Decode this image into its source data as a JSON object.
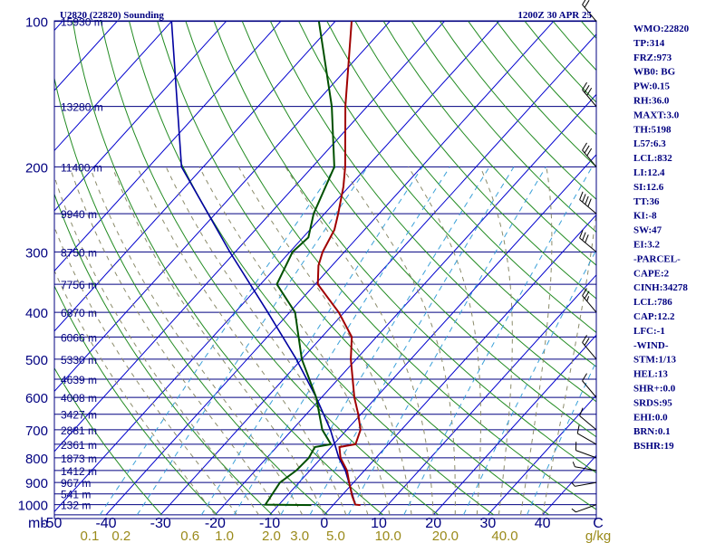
{
  "title_left": "U2820 (22820) Sounding",
  "title_right": "1200Z 30 APR 25",
  "chart_data": {
    "type": "line",
    "pressure_ticks": [
      {
        "p": 100,
        "label": "100"
      },
      {
        "p": 200,
        "label": "200"
      },
      {
        "p": 300,
        "label": "300"
      },
      {
        "p": 400,
        "label": "400"
      },
      {
        "p": 500,
        "label": "500"
      },
      {
        "p": 600,
        "label": "600"
      },
      {
        "p": 700,
        "label": "700"
      },
      {
        "p": 800,
        "label": "800"
      },
      {
        "p": 900,
        "label": "900"
      },
      {
        "p": 1000,
        "label": "1000"
      }
    ],
    "height_labels": [
      {
        "p": 100,
        "label": "15930 m"
      },
      {
        "p": 150,
        "label": "13280 m"
      },
      {
        "p": 200,
        "label": "11400 m"
      },
      {
        "p": 250,
        "label": "9940 m"
      },
      {
        "p": 300,
        "label": "8750 m"
      },
      {
        "p": 350,
        "label": "7756 m"
      },
      {
        "p": 400,
        "label": "6870 m"
      },
      {
        "p": 450,
        "label": "6066 m"
      },
      {
        "p": 500,
        "label": "5330 m"
      },
      {
        "p": 550,
        "label": "4639 m"
      },
      {
        "p": 600,
        "label": "4008 m"
      },
      {
        "p": 650,
        "label": "3427 m"
      },
      {
        "p": 700,
        "label": "2881 m"
      },
      {
        "p": 750,
        "label": "2361 m"
      },
      {
        "p": 800,
        "label": "1873 m"
      },
      {
        "p": 850,
        "label": "1412 m"
      },
      {
        "p": 900,
        "label": "967 m"
      },
      {
        "p": 950,
        "label": "541 m"
      },
      {
        "p": 1000,
        "label": "132 m"
      }
    ],
    "pressure_unit": "mb",
    "temperature_ticks": [
      {
        "t": -50,
        "label": "-50"
      },
      {
        "t": -40,
        "label": "-40"
      },
      {
        "t": -30,
        "label": "-30"
      },
      {
        "t": -20,
        "label": "-20"
      },
      {
        "t": -10,
        "label": "-10"
      },
      {
        "t": 0,
        "label": "0"
      },
      {
        "t": 10,
        "label": "10"
      },
      {
        "t": 20,
        "label": "20"
      },
      {
        "t": 30,
        "label": "30"
      },
      {
        "t": 40,
        "label": "40"
      }
    ],
    "temperature_unit": "C",
    "mixing_ratio_ticks": [
      {
        "label": "0.1",
        "x": -43
      },
      {
        "label": "0.2",
        "x": -37.2
      },
      {
        "label": "0.6",
        "x": -24.6
      },
      {
        "label": "1.0",
        "x": -18.3
      },
      {
        "label": "2.0",
        "x": -9.7
      },
      {
        "label": "3.0",
        "x": -4.5
      },
      {
        "label": "5.0",
        "x": 2.1
      },
      {
        "label": "10.0",
        "x": 11.7
      },
      {
        "label": "20.0",
        "x": 22.2
      },
      {
        "label": "40.0",
        "x": 33.1
      }
    ],
    "mixing_ratio_unit": "g/kg",
    "temperature_profile": [
      {
        "p": 1002,
        "t": 5.0
      },
      {
        "p": 1000,
        "t": 4.0
      },
      {
        "p": 960,
        "t": 2.0
      },
      {
        "p": 900,
        "t": -0.8
      },
      {
        "p": 850,
        "t": -3.2
      },
      {
        "p": 800,
        "t": -6.5
      },
      {
        "p": 760,
        "t": -8.5
      },
      {
        "p": 750,
        "t": -6.0
      },
      {
        "p": 700,
        "t": -7.5
      },
      {
        "p": 650,
        "t": -10.5
      },
      {
        "p": 600,
        "t": -14.0
      },
      {
        "p": 500,
        "t": -21.0
      },
      {
        "p": 450,
        "t": -24.5
      },
      {
        "p": 400,
        "t": -31.0
      },
      {
        "p": 350,
        "t": -39.5
      },
      {
        "p": 320,
        "t": -42.5
      },
      {
        "p": 300,
        "t": -44.0
      },
      {
        "p": 270,
        "t": -45.5
      },
      {
        "p": 250,
        "t": -47.5
      },
      {
        "p": 220,
        "t": -51.0
      },
      {
        "p": 200,
        "t": -54.0
      },
      {
        "p": 150,
        "t": -64.0
      },
      {
        "p": 100,
        "t": -77.0
      }
    ],
    "dewpoint_profile": [
      {
        "p": 1002,
        "t": -4.0
      },
      {
        "p": 1000,
        "t": -12.5
      },
      {
        "p": 900,
        "t": -13.5
      },
      {
        "p": 850,
        "t": -12.5
      },
      {
        "p": 800,
        "t": -12.3
      },
      {
        "p": 760,
        "t": -13.0
      },
      {
        "p": 750,
        "t": -10.5
      },
      {
        "p": 700,
        "t": -14.5
      },
      {
        "p": 600,
        "t": -21.0
      },
      {
        "p": 500,
        "t": -30.0
      },
      {
        "p": 400,
        "t": -39.0
      },
      {
        "p": 350,
        "t": -47.0
      },
      {
        "p": 300,
        "t": -49.5
      },
      {
        "p": 280,
        "t": -49.0
      },
      {
        "p": 250,
        "t": -52.0
      },
      {
        "p": 200,
        "t": -56.0
      },
      {
        "p": 150,
        "t": -66.5
      },
      {
        "p": 100,
        "t": -83.0
      }
    ],
    "parcel_profile": [
      {
        "p": 1000,
        "t": 4.0
      },
      {
        "p": 850,
        "t": -3.5
      },
      {
        "p": 800,
        "t": -6.8
      },
      {
        "p": 700,
        "t": -13.0
      },
      {
        "p": 600,
        "t": -21.0
      },
      {
        "p": 500,
        "t": -31.0
      },
      {
        "p": 400,
        "t": -44.0
      },
      {
        "p": 300,
        "t": -61.0
      },
      {
        "p": 200,
        "t": -84.0
      },
      {
        "p": 100,
        "t": -110.0
      }
    ],
    "wind_barbs": [
      {
        "p": 1000,
        "dir": 250,
        "spd": 5
      },
      {
        "p": 900,
        "dir": 260,
        "spd": 5
      },
      {
        "p": 850,
        "dir": 280,
        "spd": 5
      },
      {
        "p": 800,
        "dir": 290,
        "spd": 10
      },
      {
        "p": 750,
        "dir": 300,
        "spd": 10
      },
      {
        "p": 700,
        "dir": 310,
        "spd": 10
      },
      {
        "p": 600,
        "dir": 320,
        "spd": 10
      },
      {
        "p": 500,
        "dir": 320,
        "spd": 20
      },
      {
        "p": 400,
        "dir": 320,
        "spd": 25
      },
      {
        "p": 300,
        "dir": 310,
        "spd": 30
      },
      {
        "p": 250,
        "dir": 310,
        "spd": 40
      },
      {
        "p": 200,
        "dir": 320,
        "spd": 30
      },
      {
        "p": 150,
        "dir": 320,
        "spd": 30
      },
      {
        "p": 100,
        "dir": 320,
        "spd": 20
      }
    ],
    "x_range": [
      -50,
      50
    ],
    "y_range": [
      1050,
      100
    ],
    "grid": true
  },
  "indices": [
    "WMO:22820",
    "TP:314",
    "FRZ:973",
    "WB0: BG",
    "PW:0.15",
    "RH:36.0",
    "MAXT:3.0",
    "TH:5198",
    "L57:6.3",
    "LCL:832",
    "LI:12.4",
    "SI:12.6",
    "TT:36",
    "KI:-8",
    "SW:47",
    "EI:3.2",
    "-PARCEL-",
    "CAPE:2",
    "CINH:34278",
    "LCL:786",
    "CAP:12.2",
    "LFC:-1",
    "-WIND-",
    "STM:1/13",
    "HEL:13",
    "SHR+:0.0",
    "SRDS:95",
    "EHI:0.0",
    "BRN:0.1",
    "BSHR:19"
  ],
  "colors": {
    "isobar": "#000080",
    "isotherm": "#0000cd",
    "dry_adiabat": "#228b22",
    "moist_adiabat": "#8b8b6a",
    "mixing_ratio": "#3aa0d8",
    "temperature": "#a00000",
    "dewpoint": "#005000",
    "parcel": "#0000a0",
    "text": "#000080",
    "mixing_label": "#9a8a1a"
  }
}
